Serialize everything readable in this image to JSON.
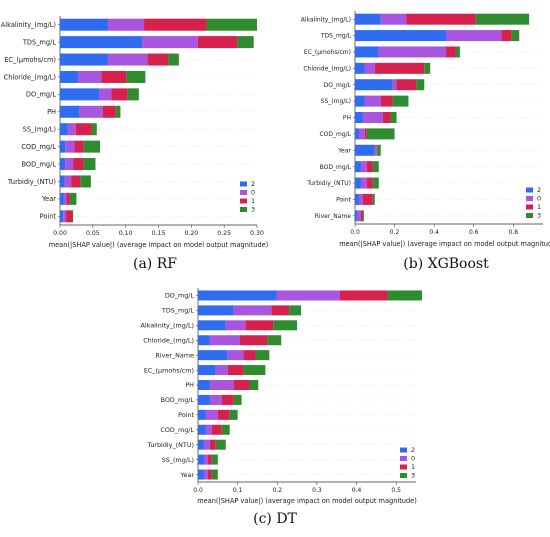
{
  "chart_data": [
    {
      "type": "bar",
      "caption": "(a) RF",
      "xlabel": "mean(|SHAP value|) (average impact on model output magnitude)",
      "xlim": [
        0,
        0.3
      ],
      "xticks": [
        "0.00",
        "0.05",
        "0.10",
        "0.15",
        "0.20",
        "0.25",
        "0.30"
      ],
      "categories": [
        "Alkalinity_(mg/L)",
        "TDS_mg/L",
        "EC_(µmohs/cm)",
        "Chloride_(mg/L)",
        "DO_mg/L",
        "PH",
        "SS_(mg/L)",
        "COD_mg/L",
        "BOD_mg/L",
        "Turbidiy_(NTU)",
        "Year",
        "Point"
      ],
      "series": [
        {
          "name": "2",
          "values": [
            0.073,
            0.125,
            0.073,
            0.028,
            0.06,
            0.03,
            0.012,
            0.008,
            0.008,
            0.007,
            0.006,
            0.005
          ]
        },
        {
          "name": "0",
          "values": [
            0.055,
            0.085,
            0.06,
            0.035,
            0.018,
            0.035,
            0.012,
            0.014,
            0.012,
            0.01,
            0.004,
            0.004
          ]
        },
        {
          "name": "1",
          "values": [
            0.095,
            0.06,
            0.032,
            0.038,
            0.025,
            0.02,
            0.024,
            0.014,
            0.016,
            0.014,
            0.005,
            0.01
          ]
        },
        {
          "name": "3",
          "values": [
            0.077,
            0.025,
            0.016,
            0.029,
            0.017,
            0.007,
            0.008,
            0.025,
            0.018,
            0.016,
            0.01,
            0.001
          ]
        }
      ],
      "legend_position": "bottom-right"
    },
    {
      "type": "bar",
      "caption": "(b) XGBoost",
      "xlabel": "mean(|SHAP value|) (average impact on model output magnitude)",
      "xlim": [
        0,
        0.95
      ],
      "xticks": [
        "0.0",
        "0.2",
        "0.4",
        "0.6",
        "0.8"
      ],
      "categories": [
        "Alkalinity_(mg/L)",
        "TDS_mg/L",
        "EC_(µmohs/cm)",
        "Chloride_(mg/L)",
        "DO_mg/L",
        "SS_(mg/L)",
        "PH",
        "COD_mg/L",
        "Year",
        "BOD_mg/L",
        "Turbidiy_(NTU)",
        "Point",
        "River_Name"
      ],
      "series": [
        {
          "name": "2",
          "values": [
            0.13,
            0.46,
            0.12,
            0.05,
            0.19,
            0.05,
            0.04,
            0.02,
            0.1,
            0.03,
            0.03,
            0.02,
            0.01
          ]
        },
        {
          "name": "0",
          "values": [
            0.13,
            0.28,
            0.34,
            0.05,
            0.02,
            0.08,
            0.1,
            0.03,
            0.01,
            0.03,
            0.03,
            0.02,
            0.02
          ]
        },
        {
          "name": "1",
          "values": [
            0.35,
            0.05,
            0.05,
            0.25,
            0.1,
            0.06,
            0.04,
            0.01,
            0.005,
            0.03,
            0.03,
            0.05,
            0.01
          ]
        },
        {
          "name": "3",
          "values": [
            0.27,
            0.04,
            0.02,
            0.03,
            0.04,
            0.08,
            0.03,
            0.14,
            0.015,
            0.03,
            0.03,
            0.01,
            0.005
          ]
        }
      ],
      "legend_position": "bottom-right"
    },
    {
      "type": "bar",
      "caption": "(c) DT",
      "xlabel": "mean(|SHAP value|) (average impact on model output magnitude)",
      "xlim": [
        0,
        0.55
      ],
      "xticks": [
        "0.0",
        "0.1",
        "0.2",
        "0.3",
        "0.4",
        "0.5"
      ],
      "categories": [
        "DO_mg/L",
        "TDS_mg/L",
        "Alkalinity_(mg/L)",
        "Chloride_(mg/L)",
        "River_Name",
        "EC_(µmohs/cm)",
        "PH",
        "BOD_mg/L",
        "Point",
        "COD_mg/L",
        "Turbidiy_(NTU)",
        "SS_(mg/L)",
        "Year"
      ],
      "series": [
        {
          "name": "2",
          "values": [
            0.198,
            0.09,
            0.07,
            0.03,
            0.075,
            0.045,
            0.03,
            0.03,
            0.02,
            0.02,
            0.015,
            0.015,
            0.015
          ]
        },
        {
          "name": "0",
          "values": [
            0.16,
            0.095,
            0.05,
            0.075,
            0.04,
            0.03,
            0.06,
            0.03,
            0.03,
            0.015,
            0.015,
            0.01,
            0.01
          ]
        },
        {
          "name": "1",
          "values": [
            0.12,
            0.045,
            0.07,
            0.07,
            0.03,
            0.04,
            0.04,
            0.03,
            0.03,
            0.025,
            0.015,
            0.01,
            0.01
          ]
        },
        {
          "name": "3",
          "values": [
            0.087,
            0.03,
            0.06,
            0.035,
            0.035,
            0.055,
            0.022,
            0.02,
            0.02,
            0.02,
            0.025,
            0.015,
            0.015
          ]
        }
      ],
      "legend_position": "bottom-right"
    }
  ],
  "colors": {
    "2": "#2f6cf0",
    "0": "#a855e0",
    "1": "#d6204e",
    "3": "#2e8b2e",
    "axis": "#333333",
    "text": "#222222"
  }
}
